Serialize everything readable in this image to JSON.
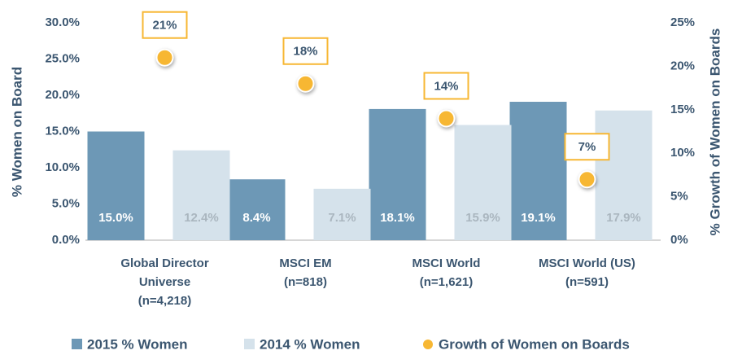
{
  "chart_data": {
    "type": "bar",
    "categories": [
      [
        "Global Director",
        "Universe",
        "(n=4,218)"
      ],
      [
        "MSCI EM",
        "(n=818)"
      ],
      [
        "MSCI World",
        "(n=1,621)"
      ],
      [
        "MSCI World (US)",
        "(n=591)"
      ]
    ],
    "series": [
      {
        "name": "2015 % Women",
        "type": "bar",
        "color": "#6d98b6",
        "label_color": "#ffffff",
        "values": [
          15.0,
          8.4,
          18.1,
          19.1
        ],
        "value_labels": [
          "15.0%",
          "8.4%",
          "18.1%",
          "19.1%"
        ]
      },
      {
        "name": "2014 % Women",
        "type": "bar",
        "color": "#d5e2eb",
        "label_color": "#aab6bf",
        "values": [
          12.4,
          7.1,
          15.9,
          17.9
        ],
        "value_labels": [
          "12.4%",
          "7.1%",
          "15.9%",
          "17.9%"
        ]
      },
      {
        "name": "Growth of Women on Boards",
        "type": "scatter",
        "axis": "y2",
        "color": "#f7b733",
        "values": [
          21,
          18,
          14,
          7
        ],
        "value_labels": [
          "21%",
          "18%",
          "14%",
          "7%"
        ]
      }
    ],
    "ylabel": "% Women on Board",
    "y2label": "% Growth of Women on Boards",
    "ylim": [
      0,
      30
    ],
    "yticks": [
      {
        "value": 0,
        "label": "0.0%"
      },
      {
        "value": 5,
        "label": "5.0%"
      },
      {
        "value": 10,
        "label": "10.0%"
      },
      {
        "value": 15,
        "label": "15.0%"
      },
      {
        "value": 20,
        "label": "20.0%"
      },
      {
        "value": 25,
        "label": "25.0%"
      },
      {
        "value": 30,
        "label": "30.0%"
      }
    ],
    "y2lim": [
      0,
      25
    ],
    "y2ticks": [
      {
        "value": 0,
        "label": "0%"
      },
      {
        "value": 5,
        "label": "5%"
      },
      {
        "value": 10,
        "label": "10%"
      },
      {
        "value": 15,
        "label": "15%"
      },
      {
        "value": 20,
        "label": "20%"
      },
      {
        "value": 25,
        "label": "25%"
      }
    ],
    "legend": "bottom"
  }
}
